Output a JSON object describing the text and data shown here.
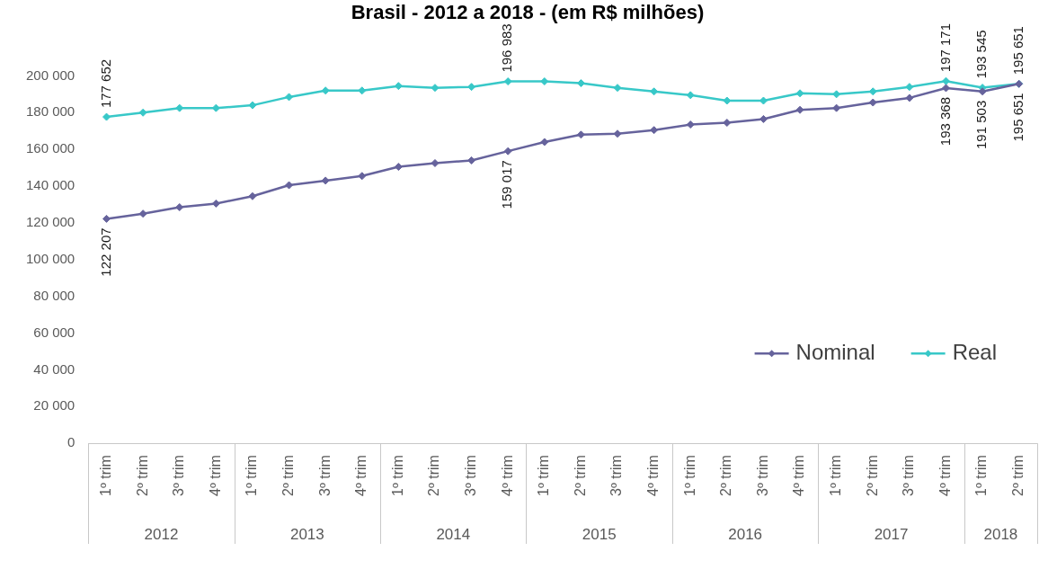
{
  "chart_data": {
    "type": "line",
    "title": "Brasil - 2012 a 2018 - (em R$ milhões)",
    "categories": [
      "1º trim",
      "2º trim",
      "3º trim",
      "4º trim",
      "1º trim",
      "2º trim",
      "3º trim",
      "4º trim",
      "1º trim",
      "2º trim",
      "3º trim",
      "4º trim",
      "1º trim",
      "2º trim",
      "3º trim",
      "4º trim",
      "1º trim",
      "2º trim",
      "3º trim",
      "4º trim",
      "1º trim",
      "2º trim",
      "3º trim",
      "4º trim",
      "1º trim",
      "2º trim"
    ],
    "annotations": [
      "2012",
      "2013",
      "2014",
      "2015",
      "2016",
      "2017",
      "2018"
    ],
    "series": [
      {
        "name": "Nominal",
        "color": "#66639c",
        "values": [
          122207,
          125000,
          128500,
          130500,
          134500,
          140500,
          143000,
          145500,
          150500,
          152500,
          154000,
          159017,
          164000,
          168000,
          168500,
          170500,
          173500,
          174500,
          176500,
          181500,
          182500,
          185500,
          188000,
          193368,
          191503,
          195651
        ],
        "value_labels": [
          "122 207",
          null,
          null,
          null,
          null,
          null,
          null,
          null,
          null,
          null,
          null,
          "159 017",
          null,
          null,
          null,
          null,
          null,
          null,
          null,
          null,
          null,
          null,
          null,
          "193 368",
          "191 503",
          "195 651"
        ]
      },
      {
        "name": "Real",
        "color": "#38c8c8",
        "values": [
          177652,
          180000,
          182500,
          182500,
          184000,
          188500,
          192000,
          192000,
          194500,
          193500,
          194000,
          196983,
          197000,
          196000,
          193500,
          191500,
          189500,
          186500,
          186500,
          190500,
          190000,
          191500,
          194000,
          197171,
          193545,
          195651
        ],
        "value_labels": [
          "177 652",
          null,
          null,
          null,
          null,
          null,
          null,
          null,
          null,
          null,
          null,
          "196 983",
          null,
          null,
          null,
          null,
          null,
          null,
          null,
          null,
          null,
          null,
          null,
          "197 171",
          "193 545",
          "195 651"
        ]
      }
    ],
    "ylim": [
      0,
      200000
    ],
    "yticks": [
      0,
      {
        "value": 20000,
        "label": "20 000"
      },
      {
        "value": 40000,
        "label": "40 000"
      },
      {
        "value": 60000,
        "label": "60 000"
      },
      {
        "value": 80000,
        "label": "80 000"
      },
      {
        "value": 100000,
        "label": "100 000"
      },
      {
        "value": 120000,
        "label": "120 000"
      },
      {
        "value": 140000,
        "label": "140 000"
      },
      {
        "value": 160000,
        "label": "160 000"
      },
      {
        "value": 180000,
        "label": "180 000"
      },
      {
        "value": 200000,
        "label": "200 000"
      }
    ],
    "grid": false,
    "legend": "bottom right",
    "marker": "diamond",
    "line_style": "solid"
  }
}
